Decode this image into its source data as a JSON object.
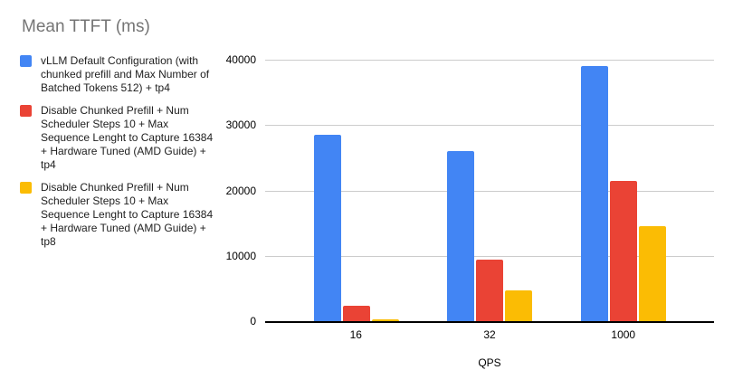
{
  "chart_data": {
    "type": "bar",
    "title": "Mean TTFT (ms)",
    "xlabel": "QPS",
    "ylabel": "",
    "categories": [
      "16",
      "32",
      "1000"
    ],
    "series": [
      {
        "name": "vLLM Default Configuration (with chunked prefill and Max Number of Batched Tokens 512) + tp4",
        "color": "#4285f4",
        "values": [
          28500,
          26000,
          39000
        ]
      },
      {
        "name": "Disable Chunked Prefill + Num Scheduler Steps 10 + Max Sequence Lenght to Capture 16384 + Hardware Tuned (AMD Guide) + tp4",
        "color": "#ea4335",
        "values": [
          2300,
          9400,
          21500
        ]
      },
      {
        "name": "Disable Chunked Prefill + Num Scheduler Steps 10 + Max Sequence Lenght to Capture 16384 + Hardware Tuned (AMD Guide) + tp8",
        "color": "#fbbc04",
        "values": [
          300,
          4700,
          14600
        ]
      }
    ],
    "ylim": [
      0,
      40000
    ],
    "yticks": [
      0,
      10000,
      20000,
      30000,
      40000
    ],
    "grid": true,
    "legend_position": "left"
  },
  "colors": {
    "axis": "#000000",
    "gridline": "#cccccc",
    "title_text": "#757575",
    "legend_text": "#212121",
    "background": "#ffffff"
  }
}
